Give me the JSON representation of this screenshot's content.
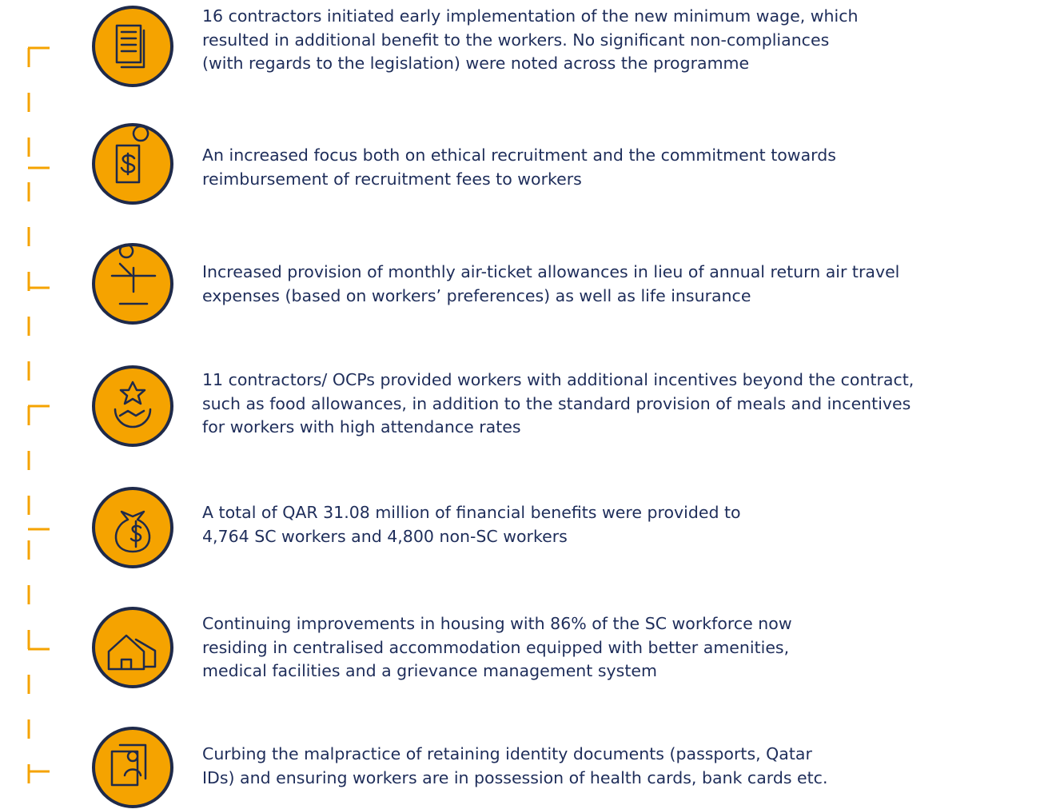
{
  "items": [
    {
      "lines": [
        "16 contractors initiated early implementation of the new minimum wage, which",
        "resulted in additional benefit to the workers. No significant non-compliances",
        "(with regards to the legislation) were noted across the programme"
      ]
    },
    {
      "lines": [
        "An increased focus both on ethical recruitment and the commitment towards",
        "reimbursement of recruitment fees to workers"
      ]
    },
    {
      "lines": [
        "Increased provision of monthly air-ticket allowances in lieu of annual return air travel",
        "expenses (based on workers’ preferences) as well as life insurance"
      ]
    },
    {
      "lines": [
        "11 contractors/ OCPs provided workers with additional incentives beyond the contract,",
        "such as food allowances, in addition to the standard provision of meals and incentives",
        "for workers with high attendance rates"
      ]
    },
    {
      "lines": [
        "A total of QAR 31.08 million of financial benefits were provided to",
        "4,764 SC workers and 4,800 non-SC workers"
      ]
    },
    {
      "lines": [
        "Continuing improvements in housing with 86% of the SC workforce now",
        "residing in centralised accommodation equipped with better amenities,",
        "medical facilities and a grievance management system"
      ]
    },
    {
      "lines": [
        "Curbing the malpractice of retaining identity documents (passports, Qatar",
        "IDs) and ensuring workers are in possession of health cards, bank cards etc."
      ]
    }
  ]
}
